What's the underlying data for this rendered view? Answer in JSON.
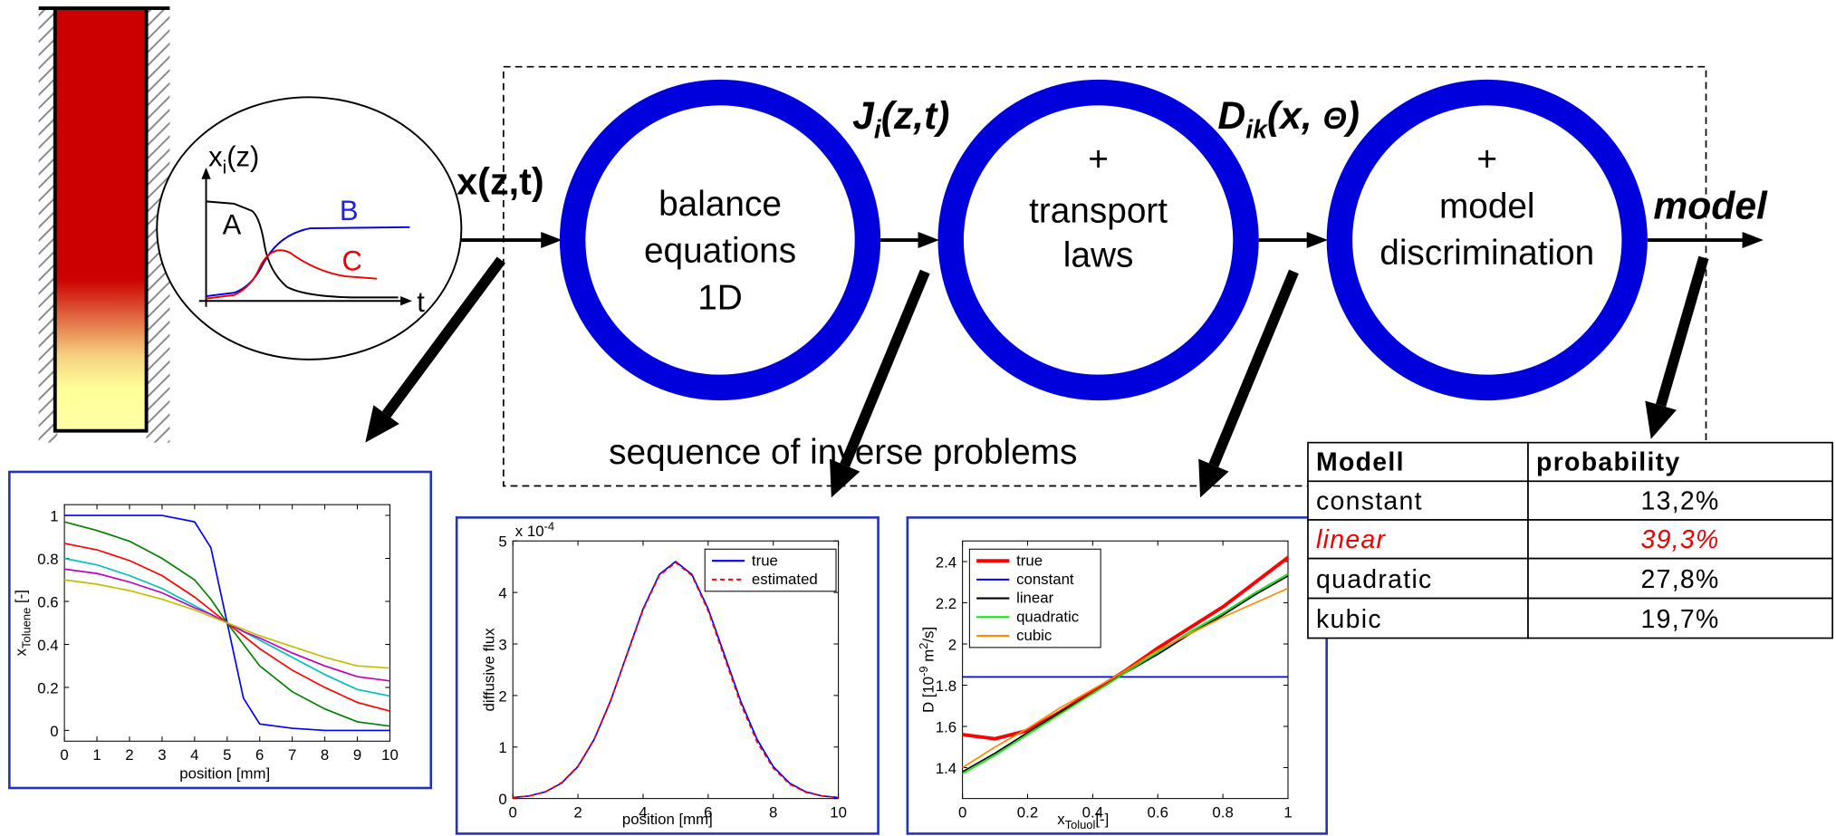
{
  "inset_sketch": {
    "y_label": {
      "main": "x",
      "sub": "i",
      "rest": "(z)"
    },
    "x_label": "t",
    "curves": [
      "A",
      "B",
      "C"
    ]
  },
  "input_label": "x(z,t)",
  "steps": [
    {
      "lines": [
        "balance",
        "equations",
        "1D"
      ]
    },
    {
      "lines": [
        "+",
        "transport",
        "laws"
      ]
    },
    {
      "lines": [
        "+",
        "model",
        "discrimination"
      ]
    }
  ],
  "flux_label": {
    "main": "J",
    "sub": "i",
    "rest": "(z,t)"
  },
  "diffusivity_label": {
    "main": "D",
    "sub": "ik",
    "rest": "(x, ",
    "symbol": "Θ",
    "end": ")"
  },
  "output_label": "model",
  "caption": "sequence of inverse problems",
  "plots": [
    {
      "type": "line",
      "x_label": "position [mm]",
      "y_label": {
        "main": "x",
        "sub": "Toluene",
        "rest": " [-]"
      },
      "xlim": [
        0,
        10
      ],
      "ylim": [
        -0.05,
        1.05
      ],
      "xticks": [
        0,
        1,
        2,
        3,
        4,
        5,
        6,
        7,
        8,
        9,
        10
      ],
      "yticks": [
        0,
        0.2,
        0.4,
        0.6,
        0.8,
        1
      ],
      "x": [
        0,
        1,
        2,
        3,
        4,
        4.5,
        5,
        5.5,
        6,
        7,
        8,
        9,
        10
      ],
      "series": [
        {
          "color": "#0000ff",
          "values": [
            1,
            1,
            1,
            1,
            0.97,
            0.85,
            0.5,
            0.15,
            0.03,
            0.01,
            0,
            0,
            0
          ]
        },
        {
          "color": "#008000",
          "values": [
            0.97,
            0.93,
            0.88,
            0.8,
            0.7,
            0.61,
            0.5,
            0.4,
            0.3,
            0.18,
            0.1,
            0.04,
            0.02
          ]
        },
        {
          "color": "#ff0000",
          "values": [
            0.87,
            0.84,
            0.79,
            0.72,
            0.62,
            0.56,
            0.5,
            0.44,
            0.38,
            0.28,
            0.2,
            0.13,
            0.09
          ]
        },
        {
          "color": "#00c0c0",
          "values": [
            0.8,
            0.77,
            0.72,
            0.66,
            0.58,
            0.54,
            0.5,
            0.46,
            0.42,
            0.34,
            0.26,
            0.19,
            0.16
          ]
        },
        {
          "color": "#c000c0",
          "values": [
            0.75,
            0.73,
            0.69,
            0.64,
            0.57,
            0.54,
            0.5,
            0.46,
            0.43,
            0.36,
            0.3,
            0.25,
            0.23
          ]
        },
        {
          "color": "#c0c000",
          "values": [
            0.7,
            0.68,
            0.65,
            0.61,
            0.56,
            0.53,
            0.5,
            0.47,
            0.44,
            0.39,
            0.34,
            0.3,
            0.29
          ]
        }
      ]
    },
    {
      "type": "line",
      "x_label": "position [mm]",
      "y_label": "diffusive flux",
      "y_exponent": {
        "base": "x 10",
        "power": "-4"
      },
      "xlim": [
        0,
        10
      ],
      "ylim": [
        0,
        5
      ],
      "xticks": [
        0,
        2,
        4,
        6,
        8,
        10
      ],
      "yticks": [
        0,
        1,
        2,
        3,
        4,
        5
      ],
      "legend": "upper right",
      "x": [
        0,
        0.5,
        1,
        1.5,
        2,
        2.5,
        3,
        3.5,
        4,
        4.5,
        5,
        5.5,
        6,
        6.5,
        7,
        7.5,
        8,
        8.5,
        9,
        9.5,
        10
      ],
      "series": [
        {
          "name": "true",
          "color": "#0000ff",
          "values": [
            0.02,
            0.05,
            0.13,
            0.3,
            0.62,
            1.15,
            1.89,
            2.79,
            3.68,
            4.35,
            4.6,
            4.35,
            3.68,
            2.79,
            1.89,
            1.15,
            0.62,
            0.3,
            0.13,
            0.05,
            0.02
          ]
        },
        {
          "name": "estimated",
          "color": "#ff0000",
          "dashed": true,
          "values": [
            0.02,
            0.05,
            0.13,
            0.31,
            0.63,
            1.16,
            1.9,
            2.78,
            3.66,
            4.33,
            4.58,
            4.33,
            3.64,
            2.74,
            1.84,
            1.1,
            0.59,
            0.28,
            0.12,
            0.05,
            0.02
          ]
        }
      ]
    },
    {
      "type": "line",
      "x_label": {
        "main": "x",
        "sub": "Toluol",
        "rest": "[-]"
      },
      "y_label": [
        "D [10",
        "-9",
        " m",
        "2",
        "/s]"
      ],
      "xlim": [
        0,
        1
      ],
      "ylim": [
        1.25,
        2.5
      ],
      "xticks": [
        0,
        0.2,
        0.4,
        0.6,
        0.8,
        1
      ],
      "yticks": [
        1.4,
        1.6,
        1.8,
        2,
        2.2,
        2.4
      ],
      "legend": "upper left",
      "x": [
        0,
        0.1,
        0.2,
        0.3,
        0.4,
        0.5,
        0.6,
        0.7,
        0.8,
        0.9,
        1
      ],
      "series": [
        {
          "name": "true",
          "color": "#ff0000",
          "width": 3,
          "values": [
            1.56,
            1.54,
            1.58,
            1.67,
            1.77,
            1.87,
            1.98,
            2.08,
            2.18,
            2.3,
            2.42
          ]
        },
        {
          "name": "constant",
          "color": "#0000ff",
          "values": [
            1.84,
            1.84,
            1.84,
            1.84,
            1.84,
            1.84,
            1.84,
            1.84,
            1.84,
            1.84,
            1.84
          ]
        },
        {
          "name": "linear",
          "color": "#000000",
          "values": [
            1.38,
            1.47,
            1.57,
            1.67,
            1.76,
            1.86,
            1.95,
            2.05,
            2.14,
            2.24,
            2.33
          ]
        },
        {
          "name": "quadratic",
          "color": "#00ee00",
          "values": [
            1.37,
            1.46,
            1.56,
            1.66,
            1.76,
            1.86,
            1.96,
            2.06,
            2.15,
            2.25,
            2.34
          ]
        },
        {
          "name": "cubic",
          "color": "#ff8c00",
          "values": [
            1.4,
            1.5,
            1.59,
            1.69,
            1.78,
            1.87,
            1.97,
            2.05,
            2.13,
            2.2,
            2.27
          ]
        }
      ]
    }
  ],
  "table": {
    "header": [
      "Modell",
      "probability"
    ],
    "rows": [
      [
        "constant",
        "13,2%"
      ],
      [
        "linear",
        "39,3%"
      ],
      [
        "quadratic",
        "27,8%"
      ],
      [
        "kubic",
        "19,7%"
      ]
    ],
    "highlight_row": 1
  }
}
